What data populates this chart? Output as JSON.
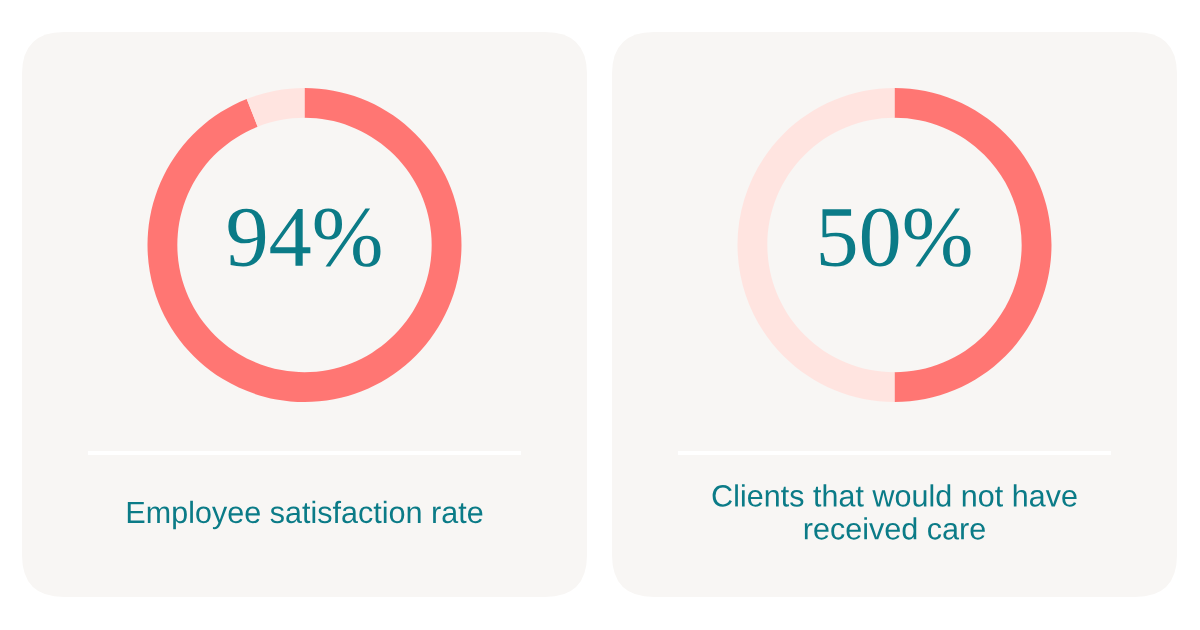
{
  "chart_data": [
    {
      "type": "donut",
      "title": "Employee satisfaction rate",
      "categories": [
        null,
        null
      ],
      "values": [
        94,
        6
      ],
      "colors": [
        "#ff7673",
        "#ffe4e0"
      ],
      "value_labels": [
        "94%",
        null
      ]
    },
    {
      "type": "donut",
      "title": "Clients that would not have\nreceived care",
      "categories": [
        null,
        null
      ],
      "values": [
        50,
        50
      ],
      "colors": [
        "#ff7673",
        "#ffe4e0"
      ],
      "value_labels": [
        "50%",
        null
      ]
    }
  ]
}
